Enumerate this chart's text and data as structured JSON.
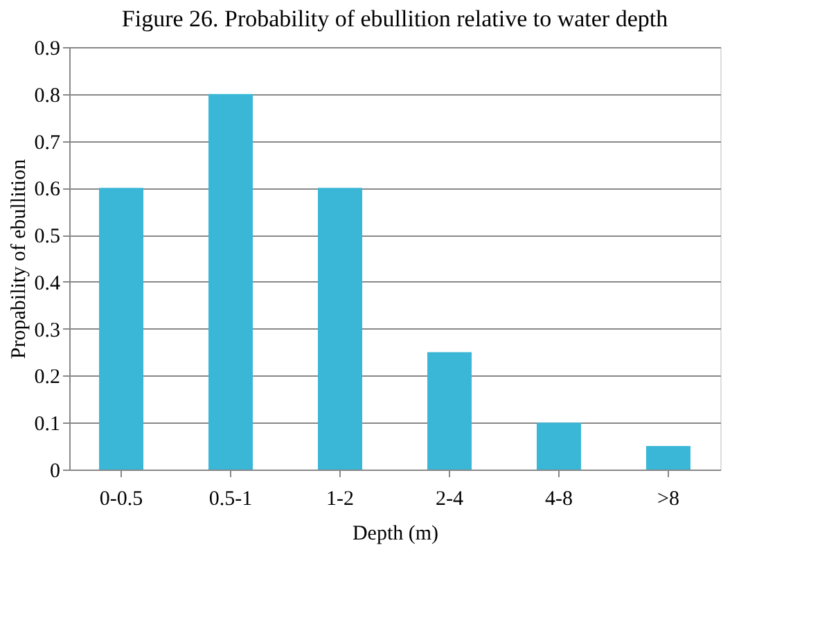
{
  "chart_data": {
    "type": "bar",
    "title": "Figure 26. Probability of ebullition relative to water depth",
    "categories": [
      "0-0.5",
      "0.5-1",
      "1-2",
      "2-4",
      "4-8",
      ">8"
    ],
    "values": [
      0.6,
      0.8,
      0.6,
      0.25,
      0.1,
      0.05
    ],
    "color": "#3ab7d6",
    "xlabel": "Depth (m)",
    "ylabel": "Propability of ebullition",
    "ylim": [
      0,
      0.9
    ],
    "yticks": [
      0,
      0.1,
      0.2,
      0.3,
      0.4,
      0.5,
      0.6,
      0.7,
      0.8,
      0.9
    ],
    "grid": "y"
  }
}
